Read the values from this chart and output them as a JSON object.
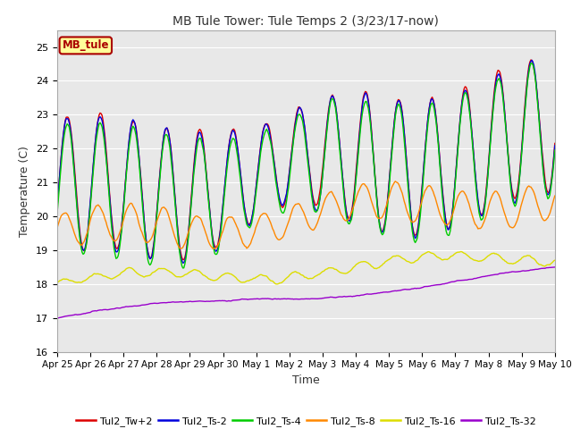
{
  "title": "MB Tule Tower: Tule Temps 2 (3/23/17-now)",
  "xlabel": "Time",
  "ylabel": "Temperature (C)",
  "ylim": [
    16.0,
    25.5
  ],
  "yticks": [
    16.0,
    17.0,
    18.0,
    19.0,
    20.0,
    21.0,
    22.0,
    23.0,
    24.0,
    25.0
  ],
  "background_color": "#ffffff",
  "plot_bg_color": "#e8e8e8",
  "legend_label": "MB_tule",
  "legend_box_color": "#ffff99",
  "legend_box_edge": "#aa0000",
  "series_colors": {
    "Tul2_Tw+2": "#dd0000",
    "Tul2_Ts-2": "#0000dd",
    "Tul2_Ts-4": "#00cc00",
    "Tul2_Ts-8": "#ff8800",
    "Tul2_Ts-16": "#dddd00",
    "Tul2_Ts-32": "#9900cc"
  },
  "xtick_labels": [
    "Apr 25",
    "Apr 26",
    "Apr 27",
    "Apr 28",
    "Apr 29",
    "Apr 30",
    "May 1",
    "May 2",
    "May 3",
    "May 4",
    "May 5",
    "May 6",
    "May 7",
    "May 8",
    "May 9",
    "May 10"
  ],
  "figsize": [
    6.4,
    4.8
  ],
  "dpi": 100
}
